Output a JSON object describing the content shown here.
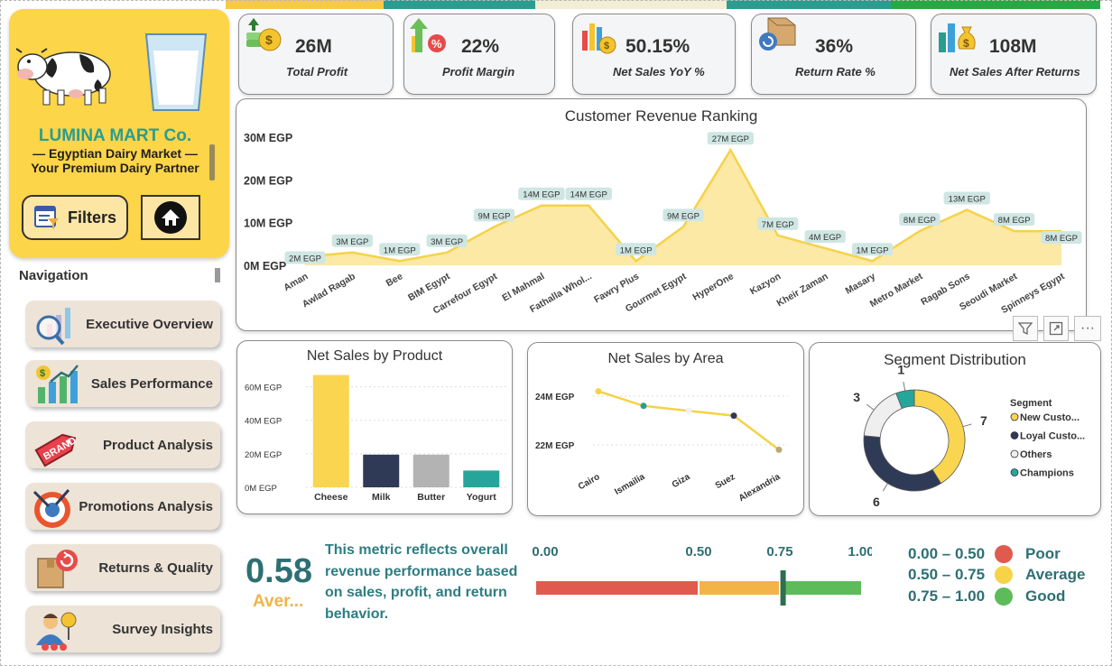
{
  "colors": {
    "brand_yellow": "#FDD549",
    "teal": "#2A9D8F",
    "area_fill": "#FCE9A6",
    "line": "#F5D24A",
    "poor": "#E05A4E",
    "average": "#F2B446",
    "good": "#5DBB5A",
    "navy": "#2F3A57",
    "grey": "#B5B5B5"
  },
  "brand": {
    "name": "LUMINA MART Co.",
    "tagline1": "— Egyptian Dairy Market —",
    "tagline2": "Your Premium Dairy Partner",
    "logo_icon": "cow-icon",
    "glass_icon": "milk-glass-icon"
  },
  "buttons": {
    "filters": "Filters",
    "home_icon": "home-icon"
  },
  "navigation": {
    "title": "Navigation",
    "items": [
      {
        "label": "Executive Overview",
        "icon": "magnifier-chart-icon"
      },
      {
        "label": "Sales Performance",
        "icon": "growth-chart-icon"
      },
      {
        "label": "Product Analysis",
        "icon": "brand-tag-icon"
      },
      {
        "label": "Promotions Analysis",
        "icon": "target-icon"
      },
      {
        "label": "Returns & Quality",
        "icon": "return-box-icon"
      },
      {
        "label": "Survey Insights",
        "icon": "survey-person-icon"
      }
    ]
  },
  "kpis": [
    {
      "value": "26M",
      "label": "Total Profit",
      "icon": "money-coin-icon"
    },
    {
      "value": "22%",
      "label": "Profit Margin",
      "icon": "percent-arrow-icon"
    },
    {
      "value": "50.15%",
      "label": "Net Sales YoY %",
      "icon": "bar-coin-icon"
    },
    {
      "value": "36%",
      "label": "Return Rate %",
      "icon": "return-box-icon"
    },
    {
      "value": "108M",
      "label": "Net Sales After Returns",
      "icon": "money-bag-icon"
    }
  ],
  "visual_header_icons": [
    "filter-icon",
    "focus-mode-icon",
    "more-options-icon"
  ],
  "chart_data": [
    {
      "type": "area",
      "title": "Customer Revenue Ranking",
      "categories": [
        "Aman",
        "Awlad Ragab",
        "Bee",
        "BIM Egypt",
        "Carrefour Egypt",
        "El Mahmal",
        "Fathalla Whol...",
        "Fawry Plus",
        "Gourmet Egypt",
        "HyperOne",
        "Kazyon",
        "Kheir Zaman",
        "Masary",
        "Metro Market",
        "Ragab Sons",
        "Seoudi Market",
        "Spinneys Egypt"
      ],
      "values": [
        2,
        3,
        1,
        3,
        9,
        14,
        14,
        1,
        9,
        27,
        7,
        4,
        1,
        8,
        13,
        8,
        8
      ],
      "data_labels": [
        "2M EGP",
        "3M EGP",
        "1M EGP",
        "3M EGP",
        "9M EGP",
        "14M EGP",
        "14M EGP",
        "1M EGP",
        "9M EGP",
        "27M EGP",
        "7M EGP",
        "4M EGP",
        "1M EGP",
        "8M EGP",
        "13M EGP",
        "8M EGP",
        "8M EGP"
      ],
      "yticks": [
        "0M EGP",
        "10M EGP",
        "20M EGP",
        "30M EGP"
      ],
      "ylim": [
        0,
        30
      ]
    },
    {
      "type": "bar",
      "title": "Net Sales by Product",
      "categories": [
        "Cheese",
        "Milk",
        "Butter",
        "Yogurt"
      ],
      "values": [
        67,
        19.5,
        19.5,
        10
      ],
      "colors": [
        "#FAD54F",
        "#2F3A57",
        "#B3B3B3",
        "#26A69A"
      ],
      "yticks": [
        "0M EGP",
        "20M EGP",
        "40M EGP",
        "60M EGP"
      ],
      "ylim": [
        0,
        70
      ]
    },
    {
      "type": "line",
      "title": "Net Sales by Area",
      "categories": [
        "Cairo",
        "Ismailia",
        "Giza",
        "Suez",
        "Alexandria"
      ],
      "values": [
        24.2,
        23.6,
        23.4,
        23.2,
        21.8
      ],
      "point_colors": [
        "#F5D24A",
        "#2A9D8F",
        "#F0F0F0",
        "#2F3A57",
        "#B9A878"
      ],
      "yticks": [
        "22M EGP",
        "24M EGP"
      ],
      "ylim": [
        21,
        25
      ]
    },
    {
      "type": "pie",
      "title": "Segment Distribution",
      "legend_title": "Segment",
      "labels": [
        "New Custo...",
        "Loyal Custo...",
        "Others",
        "Champions"
      ],
      "values": [
        7,
        6,
        3,
        1
      ],
      "colors": [
        "#FAD54F",
        "#2F3A57",
        "#EFEFEF",
        "#26A69A"
      ],
      "legend": "right"
    }
  ],
  "gauge": {
    "value": "0.58",
    "category": "Aver...",
    "description": "This metric reflects overall revenue performance based on sales, profit, and return behavior.",
    "ticks": [
      "0.00",
      "0.50",
      "0.75",
      "1.00"
    ],
    "marker": 0.76,
    "legend": [
      {
        "range": "0.00 – 0.50",
        "label": "Poor",
        "color": "#E05A4E"
      },
      {
        "range": "0.50 – 0.75",
        "label": "Average",
        "color": "#F2B446"
      },
      {
        "range": "0.75 – 1.00",
        "label": "Good",
        "color": "#5DBB5A"
      }
    ]
  }
}
